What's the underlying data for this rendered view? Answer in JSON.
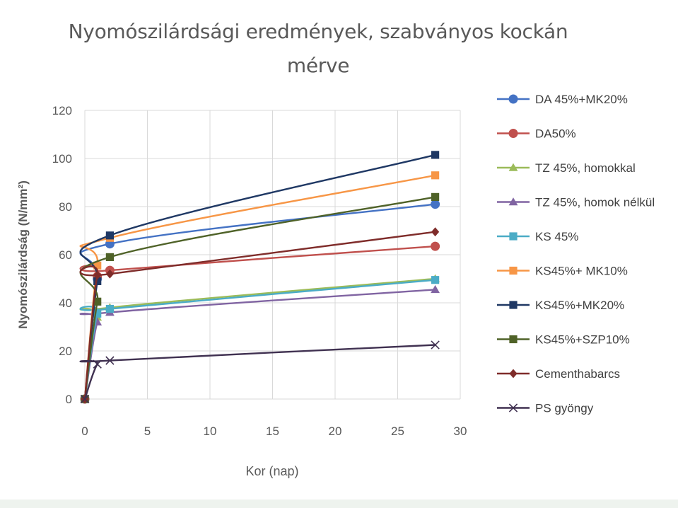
{
  "chart_data": {
    "type": "line",
    "title_lines": [
      "Nyomószilárdsági eredmények, szabványos kockán",
      "mérve"
    ],
    "xlabel": "Kor (nap)",
    "ylabel": "Nyomószilárdság (N/mm²)",
    "xlim": [
      0,
      30
    ],
    "ylim": [
      0,
      120
    ],
    "xticks": [
      0,
      5,
      10,
      15,
      20,
      25,
      30
    ],
    "yticks": [
      0,
      20,
      40,
      60,
      80,
      100,
      120
    ],
    "grid": true,
    "legend_position": "right",
    "x": [
      0,
      1,
      2,
      28
    ],
    "series": [
      {
        "name": "DA 45%+MK20%",
        "color": "#4472C4",
        "marker": "circle",
        "values": [
          0,
          50,
          64.5,
          81
        ]
      },
      {
        "name": "DA50%",
        "color": "#C0504D",
        "marker": "circle",
        "values": [
          0,
          51,
          53.5,
          63.5
        ]
      },
      {
        "name": "TZ 45%, homokkal",
        "color": "#9BBB59",
        "marker": "triangle",
        "values": [
          0,
          34,
          38,
          50
        ]
      },
      {
        "name": "TZ 45%, homok nélkül",
        "color": "#8064A2",
        "marker": "triangle",
        "values": [
          0,
          32,
          36,
          45.5
        ]
      },
      {
        "name": "KS 45%",
        "color": "#4BACC6",
        "marker": "square",
        "values": [
          0,
          35.5,
          37.5,
          49.5
        ]
      },
      {
        "name": "KS45%+ MK10%",
        "color": "#F79646",
        "marker": "square",
        "values": [
          0,
          55.5,
          67,
          93
        ]
      },
      {
        "name": "KS45%+MK20%",
        "color": "#1F3864",
        "marker": "square",
        "values": [
          0,
          49,
          68,
          101.5
        ]
      },
      {
        "name": "KS45%+SZP10%",
        "color": "#4F6228",
        "marker": "square",
        "values": [
          0,
          40.5,
          59,
          84
        ]
      },
      {
        "name": "Cementhabarcs",
        "color": "#7F2C2A",
        "marker": "diamond",
        "values": [
          0,
          51.5,
          52,
          69.5
        ]
      },
      {
        "name": "PS gyöngy",
        "color": "#403151",
        "marker": "x",
        "values": [
          0,
          14.5,
          16,
          22.5
        ]
      }
    ]
  }
}
